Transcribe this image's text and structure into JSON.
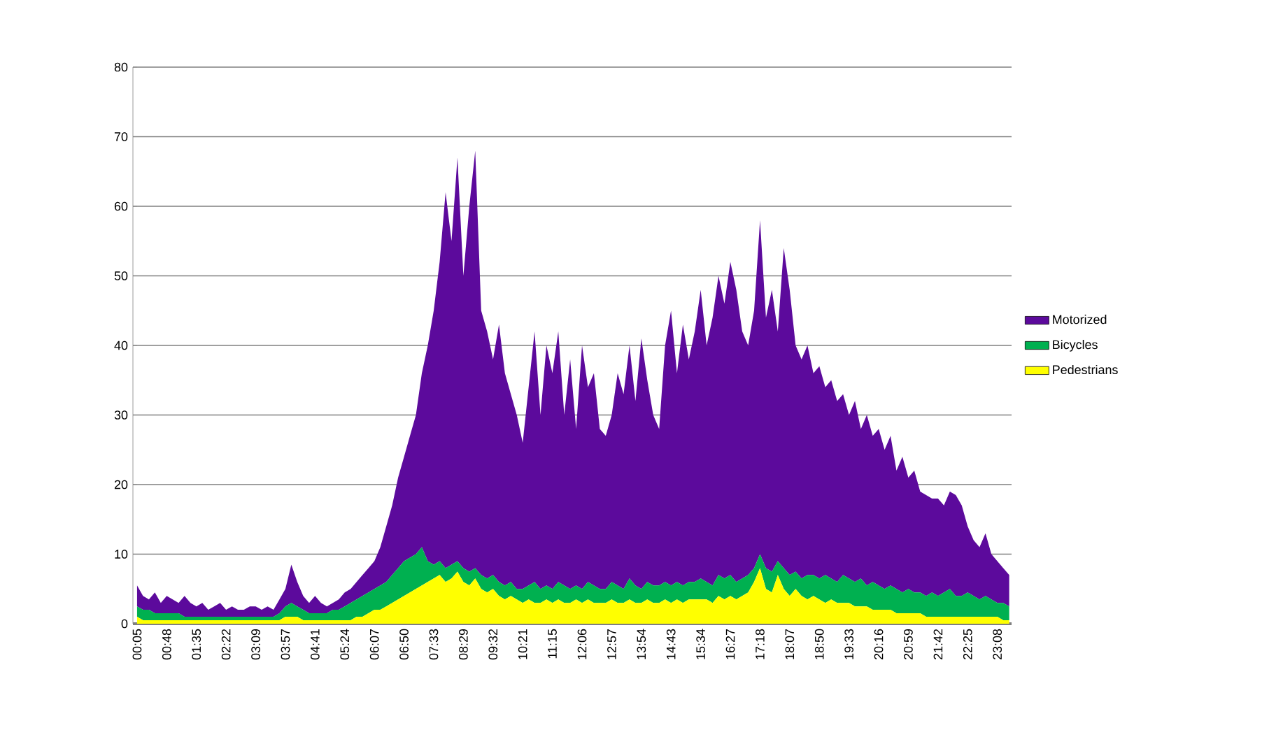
{
  "chart_data": {
    "type": "area",
    "stacked": true,
    "legend": "right",
    "grid": "y",
    "categories": [
      "00:05",
      null,
      null,
      null,
      null,
      "00:48",
      null,
      null,
      null,
      null,
      "01:35",
      null,
      null,
      null,
      null,
      "02:22",
      null,
      null,
      null,
      null,
      "03:09",
      null,
      null,
      null,
      null,
      "03:57",
      null,
      null,
      null,
      null,
      "04:41",
      null,
      null,
      null,
      null,
      "05:24",
      null,
      null,
      null,
      null,
      "06:07",
      null,
      null,
      null,
      null,
      "06:50",
      null,
      null,
      null,
      null,
      "07:33",
      null,
      null,
      null,
      null,
      "08:29",
      null,
      null,
      null,
      null,
      "09:32",
      null,
      null,
      null,
      null,
      "10:21",
      null,
      null,
      null,
      null,
      "11:15",
      null,
      null,
      null,
      null,
      "12:06",
      null,
      null,
      null,
      null,
      "12:57",
      null,
      null,
      null,
      null,
      "13:54",
      null,
      null,
      null,
      null,
      "14:43",
      null,
      null,
      null,
      null,
      "15:34",
      null,
      null,
      null,
      null,
      "16:27",
      null,
      null,
      null,
      null,
      "17:18",
      null,
      null,
      null,
      null,
      "18:07",
      null,
      null,
      null,
      null,
      "18:50",
      null,
      null,
      null,
      null,
      "19:33",
      null,
      null,
      null,
      null,
      "20:16",
      null,
      null,
      null,
      null,
      "20:59",
      null,
      null,
      null,
      null,
      "21:42",
      null,
      null,
      null,
      null,
      "22:25",
      null,
      null,
      null,
      null,
      "23:08",
      null,
      null
    ],
    "ylim": [
      0,
      80
    ],
    "yticks": [
      0,
      10,
      20,
      30,
      40,
      50,
      60,
      70,
      80
    ],
    "series": [
      {
        "name": "Pedestrians",
        "color": "#ffff00",
        "values": [
          1,
          0.5,
          0.5,
          0.5,
          0.5,
          0.5,
          0.5,
          0.5,
          0.5,
          0.5,
          0.5,
          0.5,
          0.5,
          0.5,
          0.5,
          0.5,
          0.5,
          0.5,
          0.5,
          0.5,
          0.5,
          0.5,
          0.5,
          0.5,
          0.5,
          1,
          1,
          1,
          0.5,
          0.5,
          0.5,
          0.5,
          0.5,
          0.5,
          0.5,
          0.5,
          0.5,
          1,
          1,
          1.5,
          2,
          2,
          2.5,
          3,
          3.5,
          4,
          4.5,
          5,
          5.5,
          6,
          6.5,
          7,
          6,
          6.5,
          7.5,
          6,
          5.5,
          6.5,
          5,
          4.5,
          5,
          4,
          3.5,
          4,
          3.5,
          3,
          3.5,
          3,
          3,
          3.5,
          3,
          3.5,
          3,
          3,
          3.5,
          3,
          3.5,
          3,
          3,
          3,
          3.5,
          3,
          3,
          3.5,
          3,
          3,
          3.5,
          3,
          3,
          3.5,
          3,
          3.5,
          3,
          3.5,
          3.5,
          3.5,
          3.5,
          3,
          4,
          3.5,
          4,
          3.5,
          4,
          4.5,
          6,
          8,
          5,
          4.5,
          7,
          5,
          4,
          5,
          4,
          3.5,
          4,
          3.5,
          3,
          3.5,
          3,
          3,
          3,
          2.5,
          2.5,
          2.5,
          2,
          2,
          2,
          2,
          1.5,
          1.5,
          1.5,
          1.5,
          1.5,
          1,
          1,
          1,
          1,
          1,
          1,
          1,
          1,
          1,
          1,
          1,
          1,
          1,
          0.5,
          0.5
        ]
      },
      {
        "name": "Bicycles",
        "color": "#00b050",
        "values": [
          1.5,
          1.5,
          1.5,
          1,
          1,
          1,
          1,
          1,
          0.5,
          0.5,
          0.5,
          0.5,
          0.5,
          0.5,
          0.5,
          0.5,
          0.5,
          0.5,
          0.5,
          0.5,
          0.5,
          0.5,
          0.5,
          0.5,
          1,
          1.5,
          2,
          1.5,
          1.5,
          1,
          1,
          1,
          1,
          1.5,
          1.5,
          2,
          2.5,
          2.5,
          3,
          3,
          3,
          3.5,
          3.5,
          4,
          4.5,
          5,
          5,
          5,
          5.5,
          3,
          2,
          2,
          2,
          2,
          1.5,
          2,
          2,
          1.5,
          2,
          2,
          2,
          2,
          2,
          2,
          1.5,
          2,
          2,
          3,
          2,
          2,
          2,
          2.5,
          2.5,
          2,
          2,
          2,
          2.5,
          2.5,
          2,
          2,
          2.5,
          2.5,
          2,
          3,
          2.5,
          2,
          2.5,
          2.5,
          2.5,
          2.5,
          2.5,
          2.5,
          2.5,
          2.5,
          2.5,
          3,
          2.5,
          2.5,
          3,
          3,
          3,
          2.5,
          2.5,
          2.5,
          2,
          2,
          3,
          3,
          2,
          3,
          3,
          2.5,
          2.5,
          3.5,
          3,
          3,
          4,
          3,
          3,
          4,
          3.5,
          3.5,
          4,
          3,
          4,
          3.5,
          3,
          3.5,
          3.5,
          3,
          3.5,
          3,
          3,
          3,
          3.5,
          3,
          3.5,
          4,
          3,
          3,
          3.5,
          3,
          2.5,
          3,
          2.5,
          2,
          2.5,
          2
        ]
      },
      {
        "name": "Motorized",
        "color": "#5c0a9c",
        "values": [
          3,
          2,
          1.5,
          3,
          1.5,
          2.5,
          2,
          1.5,
          3,
          2,
          1.5,
          2,
          1,
          1.5,
          2,
          1,
          1.5,
          1,
          1,
          1.5,
          1.5,
          1,
          1.5,
          1,
          2,
          2.5,
          5.5,
          3.5,
          2,
          1.5,
          2.5,
          1.5,
          1,
          1,
          1.5,
          2,
          2,
          2.5,
          3,
          3.5,
          4,
          5.5,
          8,
          10,
          13,
          15,
          17.5,
          20,
          25,
          31,
          36.5,
          43,
          54,
          46.5,
          58,
          42,
          52.5,
          60,
          38,
          35.5,
          31,
          37,
          30.5,
          27,
          25,
          21,
          28.5,
          36,
          25,
          34.5,
          31,
          36,
          24.5,
          33,
          22.5,
          35,
          28,
          30.5,
          23,
          22,
          24,
          30.5,
          28,
          33.5,
          26.5,
          36,
          29,
          24.5,
          22.5,
          34,
          39.5,
          30,
          37.5,
          32,
          36,
          41.5,
          34,
          38.5,
          43,
          39.5,
          45,
          42,
          35.5,
          33,
          37,
          48,
          36,
          40.5,
          33,
          46,
          41,
          32.5,
          31.5,
          33,
          29,
          30.5,
          27,
          28.5,
          26,
          26,
          23.5,
          26,
          21.5,
          24.5,
          21,
          22.5,
          20,
          21.5,
          17,
          19.5,
          16,
          17.5,
          14.5,
          14.5,
          13.5,
          14,
          12.5,
          14,
          14.5,
          13,
          9.5,
          8,
          7.5,
          9,
          6.5,
          6,
          5,
          4.5
        ]
      }
    ]
  }
}
